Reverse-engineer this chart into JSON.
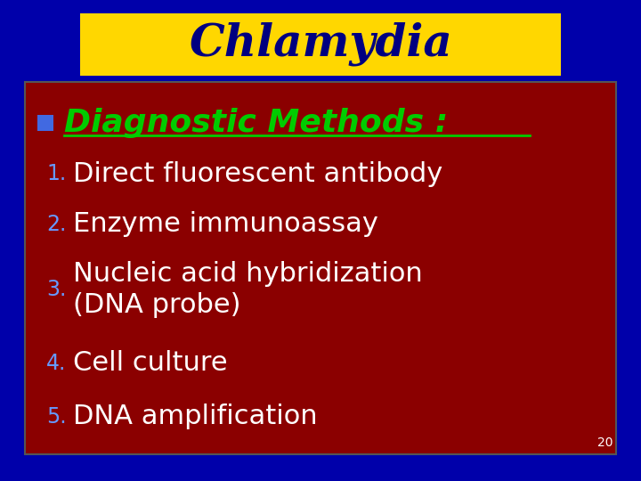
{
  "title": "Chlamydia",
  "title_color": "#000080",
  "title_bg_color": "#FFD700",
  "slide_bg_color": "#0000AA",
  "content_bg_color": "#8B0000",
  "bullet_color": "#4169E1",
  "bullet_label": "Diagnostic Methods :",
  "bullet_label_color": "#00CC00",
  "items": [
    "Direct fluorescent antibody",
    "Enzyme immunoassay",
    "Nucleic acid hybridization\n(DNA probe)",
    "Cell culture",
    "DNA amplification"
  ],
  "item_text_color": "#FFFFFF",
  "number_color": "#6699FF",
  "page_number": "20",
  "page_number_color": "#FFFFFF"
}
